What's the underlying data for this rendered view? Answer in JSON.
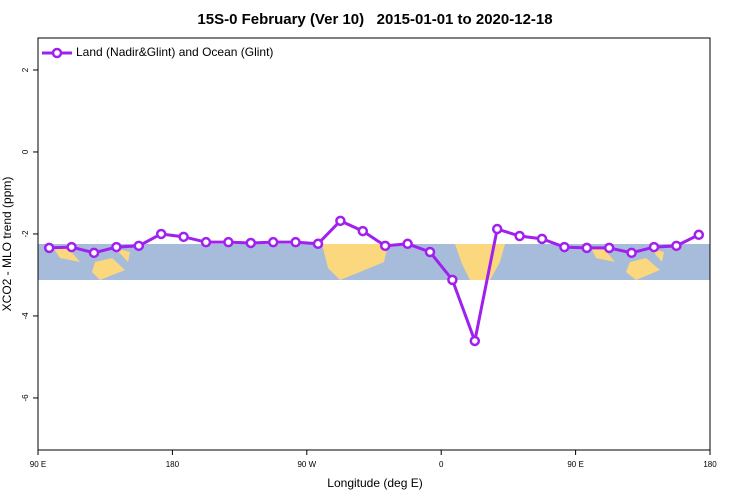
{
  "chart_data": {
    "type": "line",
    "title": "15S-0 February (Ver 10)   2015-01-01 to 2020-12-18",
    "xlabel": "Longitude (deg E)",
    "ylabel": "XCO2 - MLO trend (ppm)",
    "x": [
      97.5,
      112.5,
      127.5,
      142.5,
      157.5,
      172.5,
      187.5,
      202.5,
      217.5,
      232.5,
      247.5,
      262.5,
      277.5,
      292.5,
      307.5,
      322.5,
      337.5,
      352.5,
      367.5,
      382.5,
      397.5,
      412.5,
      427.5,
      442.5,
      457.5,
      472.5,
      487.5,
      502.5,
      517.5,
      532.5
    ],
    "series": [
      {
        "name": "Land (Nadir&Glint) and Ocean (Glint)",
        "color": "#a020f0",
        "values": [
          -2.34,
          -2.32,
          -2.46,
          -2.32,
          -2.29,
          -2.0,
          -2.07,
          -2.2,
          -2.2,
          -2.22,
          -2.2,
          -2.2,
          -2.24,
          -1.68,
          -1.93,
          -2.29,
          -2.24,
          -2.44,
          -3.12,
          -4.61,
          -1.88,
          -2.05,
          -2.12,
          -2.32,
          -2.34,
          -2.34,
          -2.46,
          -2.32,
          -2.29,
          -2.02
        ]
      }
    ],
    "xlim": [
      90,
      540
    ],
    "xticks": [
      {
        "value": 90,
        "label": "90 E"
      },
      {
        "value": 180,
        "label": "180"
      },
      {
        "value": 270,
        "label": "90 W"
      },
      {
        "value": 360,
        "label": "0"
      },
      {
        "value": 450,
        "label": "90 E"
      },
      {
        "value": 540,
        "label": "180"
      }
    ],
    "ylim": [
      -7.27,
      2.78
    ],
    "yticks": [
      -6,
      -4,
      -2,
      0,
      2
    ],
    "legend": "top-left"
  }
}
